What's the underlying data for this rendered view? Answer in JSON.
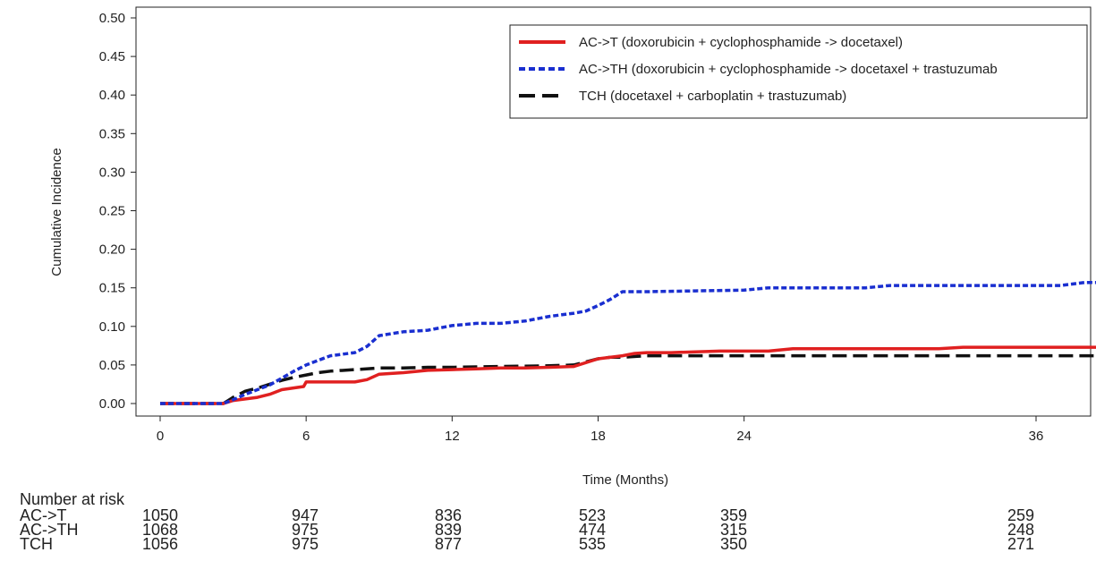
{
  "chart_data": {
    "type": "line",
    "title": "",
    "xlabel": "Time (Months)",
    "ylabel": "Cumulative Incidence",
    "xlim": [
      0,
      39
    ],
    "ylim": [
      0,
      0.5
    ],
    "x_ticks": [
      0,
      6,
      12,
      18,
      24,
      36
    ],
    "y_ticks": [
      0.0,
      0.05,
      0.1,
      0.15,
      0.2,
      0.25,
      0.3,
      0.35,
      0.4,
      0.45,
      0.5
    ],
    "y_tick_labels": [
      "0.00",
      "0.05",
      "0.10",
      "0.15",
      "0.20",
      "0.25",
      "0.30",
      "0.35",
      "0.40",
      "0.45",
      "0.50"
    ],
    "legend_position": "top-right",
    "grid": false,
    "series": [
      {
        "name": "AC->T (doxorubicin + cyclophosphamide -> docetaxel)",
        "color": "#e02020",
        "style": "solid",
        "x": [
          0,
          2.6,
          3.0,
          4.0,
          4.5,
          5.0,
          5.9,
          6.0,
          7.0,
          8.0,
          8.5,
          9.0,
          10.0,
          11.0,
          12.0,
          13.0,
          14.0,
          15.0,
          16.0,
          17.0,
          18.0,
          19.0,
          19.5,
          20.0,
          21.0,
          22.0,
          23.0,
          24.0,
          25.0,
          26.0,
          28.0,
          30.0,
          32.0,
          33.0,
          35.0,
          37.0,
          39.0
        ],
        "y": [
          0,
          0,
          0.004,
          0.008,
          0.012,
          0.018,
          0.022,
          0.028,
          0.028,
          0.028,
          0.031,
          0.038,
          0.04,
          0.043,
          0.044,
          0.045,
          0.046,
          0.046,
          0.047,
          0.048,
          0.058,
          0.062,
          0.065,
          0.066,
          0.066,
          0.067,
          0.068,
          0.068,
          0.068,
          0.071,
          0.071,
          0.071,
          0.071,
          0.073,
          0.073,
          0.073,
          0.073
        ]
      },
      {
        "name": "AC->TH (doxorubicin + cyclophosphamide -> docetaxel + trastuzumab",
        "color": "#1a2fd0",
        "style": "dotted",
        "x": [
          0,
          2.6,
          3.0,
          3.5,
          4.0,
          4.5,
          5.0,
          5.5,
          6.0,
          6.5,
          7.0,
          8.0,
          8.5,
          9.0,
          10.0,
          11.0,
          12.0,
          13.0,
          14.0,
          15.0,
          16.0,
          17.0,
          17.5,
          18.0,
          18.5,
          19.0,
          20.0,
          22.0,
          24.0,
          25.0,
          27.0,
          29.0,
          30.0,
          33.0,
          35.0,
          37.0,
          38.0,
          38.5
        ],
        "y": [
          0,
          0,
          0.005,
          0.012,
          0.018,
          0.024,
          0.033,
          0.042,
          0.05,
          0.056,
          0.062,
          0.066,
          0.074,
          0.088,
          0.093,
          0.095,
          0.101,
          0.104,
          0.104,
          0.107,
          0.113,
          0.117,
          0.12,
          0.127,
          0.135,
          0.145,
          0.145,
          0.146,
          0.147,
          0.15,
          0.15,
          0.15,
          0.153,
          0.153,
          0.153,
          0.153,
          0.157,
          0.157
        ]
      },
      {
        "name": "TCH (docetaxel + carboplatin + trastuzumab)",
        "color": "#111111",
        "style": "dashed",
        "x": [
          0,
          2.6,
          3.0,
          3.5,
          4.0,
          4.5,
          5.0,
          5.5,
          6.0,
          6.5,
          7.0,
          8.0,
          9.0,
          10.0,
          11.0,
          12.0,
          14.0,
          16.0,
          17.0,
          18.0,
          18.5,
          19.0,
          20.0,
          22.0,
          24.0,
          26.0,
          28.0,
          30.0,
          32.0,
          34.0,
          36.0,
          38.0,
          39.0
        ],
        "y": [
          0,
          0,
          0.008,
          0.016,
          0.02,
          0.025,
          0.03,
          0.034,
          0.037,
          0.04,
          0.042,
          0.044,
          0.046,
          0.046,
          0.047,
          0.047,
          0.048,
          0.049,
          0.05,
          0.058,
          0.06,
          0.06,
          0.062,
          0.062,
          0.062,
          0.062,
          0.062,
          0.062,
          0.062,
          0.062,
          0.062,
          0.062,
          0.062
        ]
      }
    ],
    "risk_table": {
      "title": "Number at risk",
      "timepoints": [
        0,
        6,
        12,
        18,
        24,
        36
      ],
      "rows": [
        {
          "label": "AC->T",
          "values": [
            "1050",
            "947",
            "836",
            "523",
            "359",
            "259"
          ]
        },
        {
          "label": "AC->TH",
          "values": [
            "1068",
            "975",
            "839",
            "474",
            "315",
            "248"
          ]
        },
        {
          "label": "TCH",
          "values": [
            "1056",
            "975",
            "877",
            "535",
            "350",
            "271"
          ]
        }
      ]
    }
  }
}
